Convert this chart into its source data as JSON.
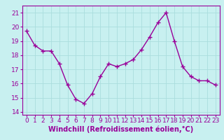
{
  "x": [
    0,
    1,
    2,
    3,
    4,
    5,
    6,
    7,
    8,
    9,
    10,
    11,
    12,
    13,
    14,
    15,
    16,
    17,
    18,
    19,
    20,
    21,
    22,
    23
  ],
  "y": [
    19.7,
    18.7,
    18.3,
    18.3,
    17.4,
    15.9,
    14.9,
    14.6,
    15.3,
    16.5,
    17.4,
    17.2,
    17.4,
    17.7,
    18.4,
    19.3,
    20.3,
    21.0,
    19.0,
    17.2,
    16.5,
    16.2,
    16.2,
    15.9
  ],
  "line_color": "#990099",
  "marker": "+",
  "marker_size": 4,
  "linewidth": 1.0,
  "xlabel": "Windchill (Refroidissement éolien,°C)",
  "ylim": [
    13.8,
    21.5
  ],
  "xlim": [
    -0.5,
    23.5
  ],
  "yticks": [
    14,
    15,
    16,
    17,
    18,
    19,
    20,
    21
  ],
  "xticks": [
    0,
    1,
    2,
    3,
    4,
    5,
    6,
    7,
    8,
    9,
    10,
    11,
    12,
    13,
    14,
    15,
    16,
    17,
    18,
    19,
    20,
    21,
    22,
    23
  ],
  "bg_color": "#c8f0f0",
  "grid_color": "#aadddd",
  "tick_color": "#990099",
  "label_color": "#990099",
  "xlabel_fontsize": 7,
  "tick_fontsize": 6.5,
  "markeredgewidth": 1.0
}
